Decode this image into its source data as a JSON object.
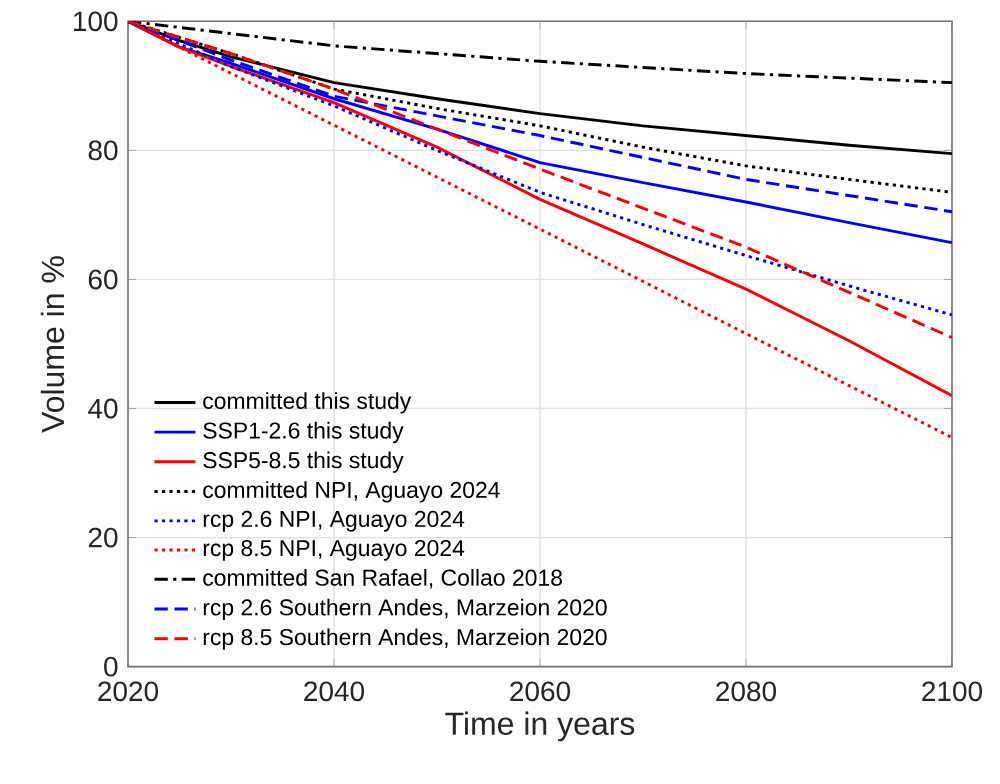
{
  "chart_data": {
    "type": "line",
    "xlabel": "Time in years",
    "ylabel": "Volume in %",
    "xlim": [
      2020,
      2100
    ],
    "xticks": [
      2020,
      2040,
      2060,
      2080,
      2100
    ],
    "ylim": [
      0,
      100
    ],
    "yticks": [
      0,
      20,
      40,
      60,
      80,
      100
    ],
    "grid": true,
    "legend": "bottom left",
    "marker": "none",
    "series": [
      {
        "name": "committed this study",
        "color": "#000000",
        "line_style": "solid",
        "x": [
          2020,
          2025,
          2030,
          2040,
          2050,
          2060,
          2070,
          2080,
          2090,
          2100
        ],
        "values": [
          100,
          97,
          94.5,
          90.5,
          88,
          85.7,
          83.8,
          82.3,
          80.8,
          79.5
        ]
      },
      {
        "name": "SSP1-2.6 this study",
        "color": "#0000ff",
        "line_style": "solid",
        "x": [
          2020,
          2025,
          2030,
          2040,
          2050,
          2060,
          2070,
          2080,
          2090,
          2100
        ],
        "values": [
          100,
          96,
          93.5,
          88,
          83.3,
          78.1,
          75,
          72,
          68.8,
          65.7
        ]
      },
      {
        "name": "SSP5-8.5 this study",
        "color": "#ff0000",
        "line_style": "solid",
        "x": [
          2020,
          2025,
          2030,
          2040,
          2050,
          2060,
          2070,
          2080,
          2090,
          2100
        ],
        "values": [
          100,
          96,
          93,
          87.4,
          80.5,
          72.4,
          65.5,
          58.5,
          50.5,
          42
        ]
      },
      {
        "name": "committed NPI, Aguayo 2024",
        "color": "#000000",
        "line_style": "dotted",
        "x": [
          2020,
          2025,
          2030,
          2040,
          2050,
          2060,
          2070,
          2080,
          2090,
          2100
        ],
        "values": [
          100,
          97.5,
          95,
          89.5,
          86.5,
          83.8,
          80.5,
          77.6,
          75.5,
          73.5
        ]
      },
      {
        "name": "rcp 2.6 NPI, Aguayo 2024",
        "color": "#0000ff",
        "line_style": "dotted",
        "x": [
          2020,
          2025,
          2030,
          2040,
          2050,
          2060,
          2070,
          2080,
          2090,
          2100
        ],
        "values": [
          100,
          96.5,
          93,
          86.9,
          80,
          73.5,
          68.5,
          63.7,
          59,
          54.5
        ]
      },
      {
        "name": "rcp 8.5 NPI, Aguayo 2024",
        "color": "#ff0000",
        "line_style": "dotted",
        "x": [
          2020,
          2040,
          2060,
          2080,
          2100
        ],
        "values": [
          100,
          83.9,
          67.8,
          51.6,
          35.5
        ]
      },
      {
        "name": "committed San Rafael, Collao 2018",
        "color": "#000000",
        "line_style": "dashdot",
        "x": [
          2020,
          2040,
          2060,
          2080,
          2100
        ],
        "values": [
          100,
          96.2,
          93.8,
          91.9,
          90.5
        ]
      },
      {
        "name": "rcp 2.6 Southern Andes, Marzeion 2020",
        "color": "#0000ff",
        "line_style": "dashed",
        "x": [
          2020,
          2030,
          2040,
          2060,
          2080,
          2100
        ],
        "values": [
          100,
          94,
          88.4,
          82.3,
          75.5,
          70.5
        ]
      },
      {
        "name": "rcp 8.5 Southern Andes, Marzeion 2020",
        "color": "#ff0000",
        "line_style": "dashed",
        "x": [
          2020,
          2030,
          2040,
          2060,
          2080,
          2090,
          2100
        ],
        "values": [
          100,
          95,
          89.5,
          77.1,
          65,
          58,
          51
        ]
      }
    ]
  }
}
